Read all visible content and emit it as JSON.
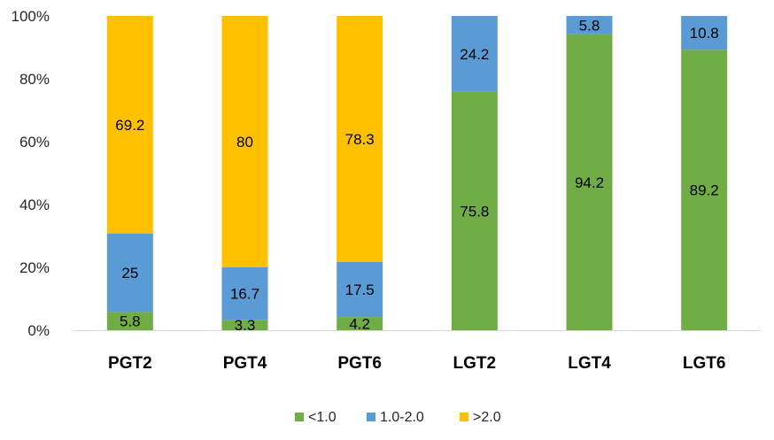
{
  "chart_data": {
    "type": "bar",
    "stacked": true,
    "percent": true,
    "categories": [
      "PGT2",
      "PGT4",
      "PGT6",
      "LGT2",
      "LGT4",
      "LGT6"
    ],
    "series": [
      {
        "name": "<1.0",
        "color": "#70ad47",
        "values": [
          5.8,
          3.3,
          4.2,
          75.8,
          94.2,
          89.2
        ],
        "labels": [
          "5.8",
          "3.3",
          "4.2",
          "75.8",
          "94.2",
          "89.2"
        ]
      },
      {
        "name": "1.0-2.0",
        "color": "#5b9bd5",
        "values": [
          25,
          16.7,
          17.5,
          24.2,
          5.8,
          10.8
        ],
        "labels": [
          "25",
          "16.7",
          "17.5",
          "24.2",
          "5.8",
          "10.8"
        ]
      },
      {
        "name": ">2.0",
        "color": "#ffc000",
        "values": [
          69.2,
          80,
          78.3,
          0,
          0,
          0
        ],
        "labels": [
          "69.2",
          "80",
          "78.3",
          "",
          "",
          ""
        ]
      }
    ],
    "y_ticks": [
      "0%",
      "20%",
      "40%",
      "60%",
      "80%",
      "100%"
    ],
    "ylim": [
      0,
      100
    ],
    "legend_position": "bottom",
    "title": "",
    "xlabel": "",
    "ylabel": ""
  }
}
